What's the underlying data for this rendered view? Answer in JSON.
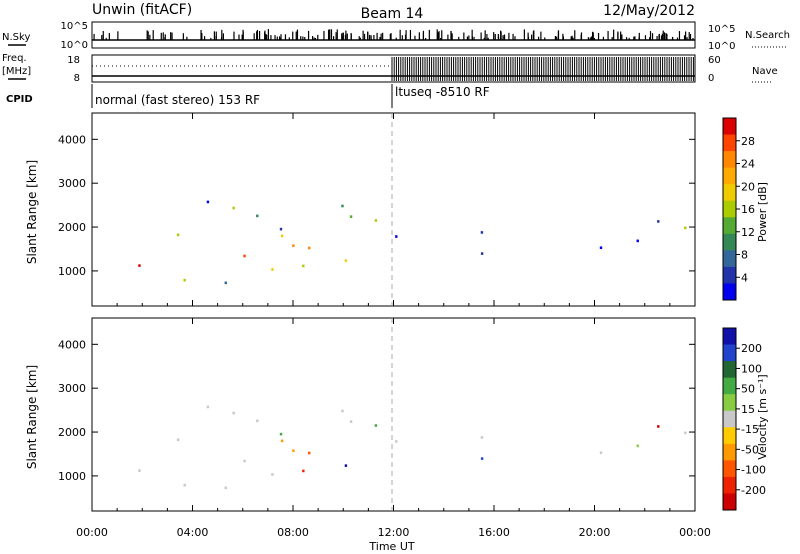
{
  "header": {
    "title_left": "Unwin (fitACF)",
    "title_center": "Beam 14",
    "title_right": "12/May/2012"
  },
  "status_panels": {
    "nsky_label": "N.Sky",
    "nsearch_label": "N.Search",
    "noise_ticks": [
      "10^5",
      "10^0"
    ],
    "freq_label_1": "Freq.",
    "freq_label_2": "[MHz]",
    "freq_ticks": [
      "18",
      "8"
    ],
    "nave_label": "Nave",
    "nave_ticks": [
      "60",
      "0"
    ],
    "cpid_label": "CPID",
    "cpid_segments": [
      "normal (fast stereo) 153 RF",
      "ltuseq -8510 RF"
    ]
  },
  "colorbars": {
    "power": {
      "label": "Power [dB]",
      "ticks": [
        "28",
        "24",
        "20",
        "16",
        "12",
        "8",
        "4"
      ],
      "colors": [
        "#dd0000",
        "#ff4400",
        "#ff8800",
        "#ffaa00",
        "#eecc00",
        "#aacc00",
        "#55aa33",
        "#338855",
        "#336699",
        "#2233aa",
        "#0000ee"
      ]
    },
    "velocity": {
      "label": "Velocity [m s⁻¹]",
      "ticks": [
        "200",
        "100",
        "50",
        "15",
        "-15",
        "-50",
        "-100",
        "-200"
      ],
      "colors": [
        "#1111aa",
        "#2244cc",
        "#226633",
        "#44aa44",
        "#88cc44",
        "#c8c8c8",
        "#ffcc00",
        "#ff9900",
        "#ff5500",
        "#ee2200",
        "#cc0000"
      ]
    }
  },
  "chart_data": [
    {
      "type": "heatmap",
      "title": "",
      "parameter": "Power",
      "ylabel": "Slant Range [km]",
      "xlabel": "Time UT",
      "xticks": [
        "00:00",
        "04:00",
        "08:00",
        "12:00",
        "16:00",
        "20:00",
        "00:00"
      ],
      "yticks": [
        "1000",
        "2000",
        "3000",
        "4000"
      ],
      "ylim": [
        200,
        4600
      ],
      "xlim_hours": [
        0,
        24
      ],
      "color_scale_db": [
        0,
        30
      ]
    },
    {
      "type": "heatmap",
      "title": "",
      "parameter": "Velocity",
      "ylabel": "Slant Range [km]",
      "xlabel": "Time UT",
      "xticks": [
        "00:00",
        "04:00",
        "08:00",
        "12:00",
        "16:00",
        "20:00",
        "00:00"
      ],
      "yticks": [
        "1000",
        "2000",
        "3000",
        "4000"
      ],
      "ylim": [
        200,
        4600
      ],
      "xlim_hours": [
        0,
        24
      ],
      "color_scale_ms": [
        -250,
        250
      ]
    }
  ]
}
